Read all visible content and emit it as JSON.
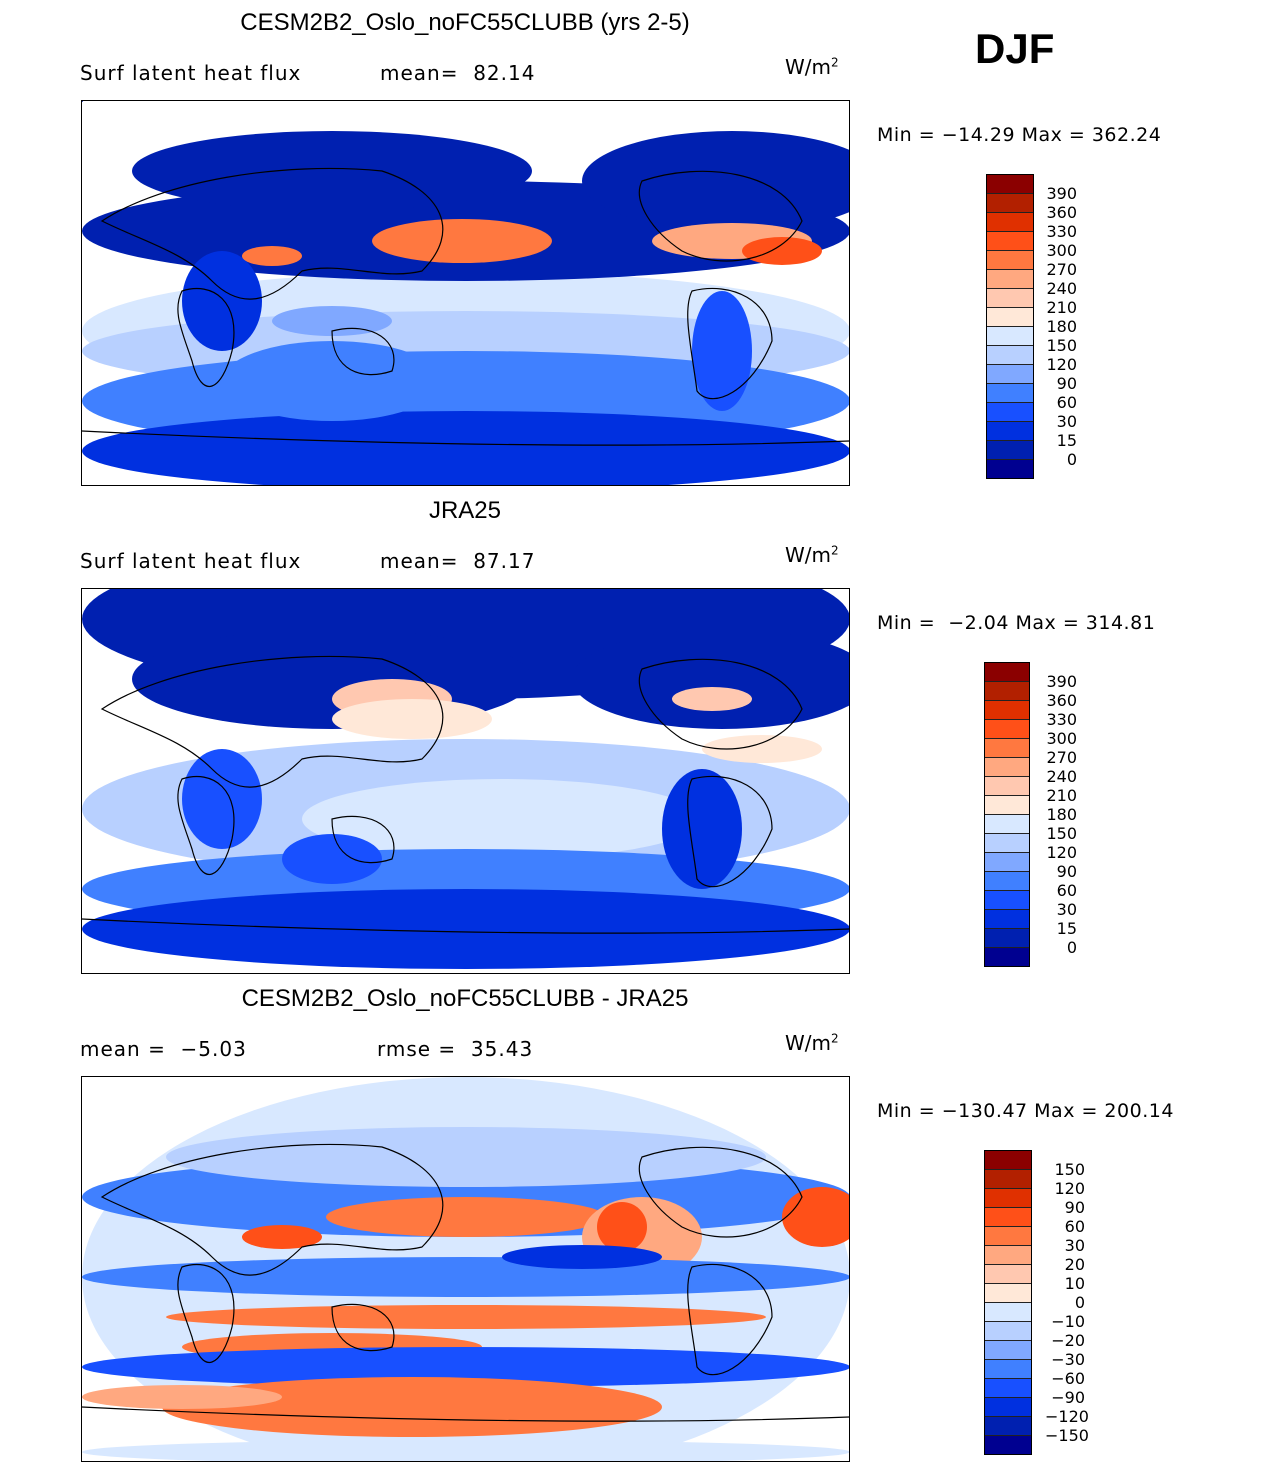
{
  "season": "DJF",
  "colors": [
    "#000090",
    "#0020b0",
    "#0030e0",
    "#1850ff",
    "#4080ff",
    "#80a8ff",
    "#b8d0ff",
    "#d8e8ff",
    "#ffe8d8",
    "#ffc8b0",
    "#ffa880",
    "#ff7840",
    "#ff5018",
    "#e03000",
    "#b22000",
    "#8b0000"
  ],
  "panels": [
    {
      "title": "CESM2B2_Oslo_noFC55CLUBB (yrs 2-5)",
      "left_label": "Surf latent heat flux",
      "mid_label": "mean=  82.14",
      "units": "W/m",
      "units_sup": "2",
      "minmax": "Min = −14.29 Max = 362.24",
      "levels": [
        "390",
        "360",
        "330",
        "300",
        "270",
        "240",
        "210",
        "180",
        "150",
        "120",
        "90",
        "60",
        "30",
        "15",
        "0"
      ]
    },
    {
      "title": "JRA25",
      "left_label": "Surf latent heat flux",
      "mid_label": "mean=  87.17",
      "units": "W/m",
      "units_sup": "2",
      "minmax": "Min =  −2.04 Max = 314.81",
      "levels": [
        "390",
        "360",
        "330",
        "300",
        "270",
        "240",
        "210",
        "180",
        "150",
        "120",
        "90",
        "60",
        "30",
        "15",
        "0"
      ]
    },
    {
      "title": "CESM2B2_Oslo_noFC55CLUBB - JRA25",
      "left_label": "mean =  −5.03",
      "mid_label": "rmse =  35.43",
      "units": "W/m",
      "units_sup": "2",
      "minmax": "Min = −130.47 Max = 200.14",
      "levels": [
        "150",
        "120",
        "90",
        "60",
        "30",
        "20",
        "10",
        "0",
        "−10",
        "−20",
        "−30",
        "−60",
        "−90",
        "−120",
        "−150"
      ]
    }
  ]
}
